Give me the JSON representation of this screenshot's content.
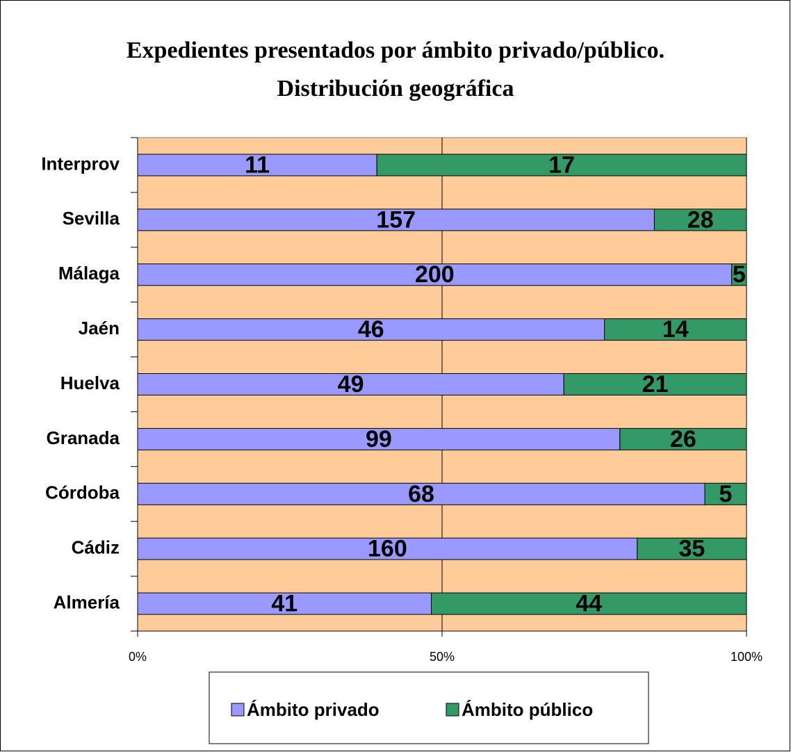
{
  "chart_data": {
    "type": "bar",
    "orientation": "horizontal",
    "stacked": "percent",
    "title": [
      "Expedientes presentados por ámbito privado/público.",
      "Distribución geográfica"
    ],
    "categories": [
      "Interprov",
      "Sevilla",
      "Málaga",
      "Jaén",
      "Huelva",
      "Granada",
      "Córdoba",
      "Cádiz",
      "Almería"
    ],
    "series": [
      {
        "name": "Ámbito privado",
        "color": "#9999ff",
        "values": [
          11,
          157,
          200,
          46,
          49,
          99,
          68,
          160,
          41
        ]
      },
      {
        "name": "Ámbito público",
        "color": "#339966",
        "values": [
          17,
          28,
          5,
          14,
          21,
          26,
          5,
          35,
          44
        ]
      }
    ],
    "xlim": [
      0,
      100
    ],
    "xticks": [
      {
        "value": 0,
        "label": "0%"
      },
      {
        "value": 50,
        "label": "50%"
      },
      {
        "value": 100,
        "label": "100%"
      }
    ],
    "grid": true,
    "plot_background": "#ffcc99",
    "legend": "bottom"
  }
}
